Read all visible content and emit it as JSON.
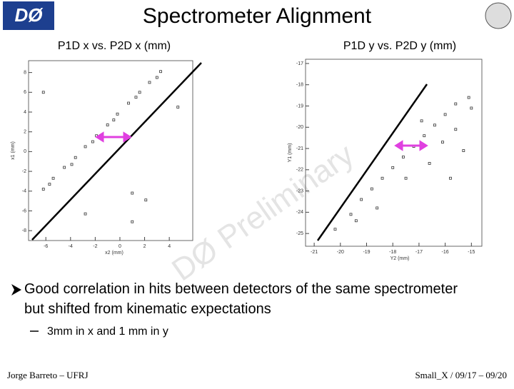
{
  "header": {
    "title": "Spectrometer Alignment",
    "logo": "DØ"
  },
  "plots": [
    {
      "title": "P1D x vs. P2D x (mm)",
      "x_label": "x2 (mm)",
      "y_label": "x1 (mm)",
      "xlim": [
        -7.4,
        5.9
      ],
      "ylim": [
        -9,
        9.2
      ],
      "xticks": [
        -6,
        -4,
        -2,
        0,
        2,
        4
      ],
      "yticks": [
        -8,
        -6,
        -4,
        -2,
        0,
        2,
        4,
        6,
        8
      ],
      "x": [
        -6.2,
        -5.4,
        -4.5,
        -3.6,
        -2.8,
        -1.9,
        -1.0,
        -0.2,
        0.7,
        1.6,
        2.4,
        3.3,
        -3.9,
        -2.2,
        -0.5,
        1.3,
        3.0,
        -5.7,
        -2.8,
        1.0,
        2.1,
        4.7,
        -6.2,
        1.0
      ],
      "y": [
        -3.8,
        -2.7,
        -1.6,
        -0.6,
        0.5,
        1.6,
        2.7,
        3.8,
        4.9,
        6.0,
        7.0,
        8.1,
        -1.3,
        1.0,
        3.2,
        5.5,
        7.5,
        -3.3,
        -6.3,
        -4.2,
        -4.9,
        4.5,
        6.0,
        -7.1
      ]
    },
    {
      "title": "P1D y vs. P2D y (mm)",
      "x_label": "Y2 (mm)",
      "y_label": "Y1 (mm)",
      "xlim": [
        -21.33,
        -14.6
      ],
      "ylim": [
        -25.6,
        -16.8
      ],
      "xticks": [
        -21,
        -20,
        -19,
        -18,
        -17,
        -16,
        -15
      ],
      "yticks": [
        -25,
        -24,
        -23,
        -22,
        -21,
        -20,
        -19,
        -18,
        -17
      ],
      "x": [
        -20.2,
        -19.6,
        -19.2,
        -18.8,
        -18.4,
        -18.0,
        -17.6,
        -17.2,
        -16.8,
        -16.4,
        -16.0,
        -15.6,
        -15.1,
        -16.6,
        -16.1,
        -15.8,
        -17.5,
        -15.6,
        -15.3,
        -18.6,
        -19.4,
        -16.9,
        -15.0
      ],
      "y": [
        -24.8,
        -24.1,
        -23.4,
        -22.9,
        -22.4,
        -21.9,
        -21.4,
        -20.9,
        -20.4,
        -19.9,
        -19.4,
        -18.9,
        -18.6,
        -21.7,
        -20.7,
        -22.4,
        -22.4,
        -20.1,
        -21.1,
        -23.8,
        -24.4,
        -19.7,
        -19.1
      ]
    }
  ],
  "watermark": "DØ Preliminary",
  "bullets": [
    {
      "text": "Good correlation in hits between detectors of the same spectrometer but shifted from kinematic expectations",
      "sub": "3mm in x and 1 mm in y"
    }
  ],
  "footer": {
    "left": "Jorge Barreto – UFRJ",
    "right": "Small_X / 09/17 – 09/20"
  }
}
